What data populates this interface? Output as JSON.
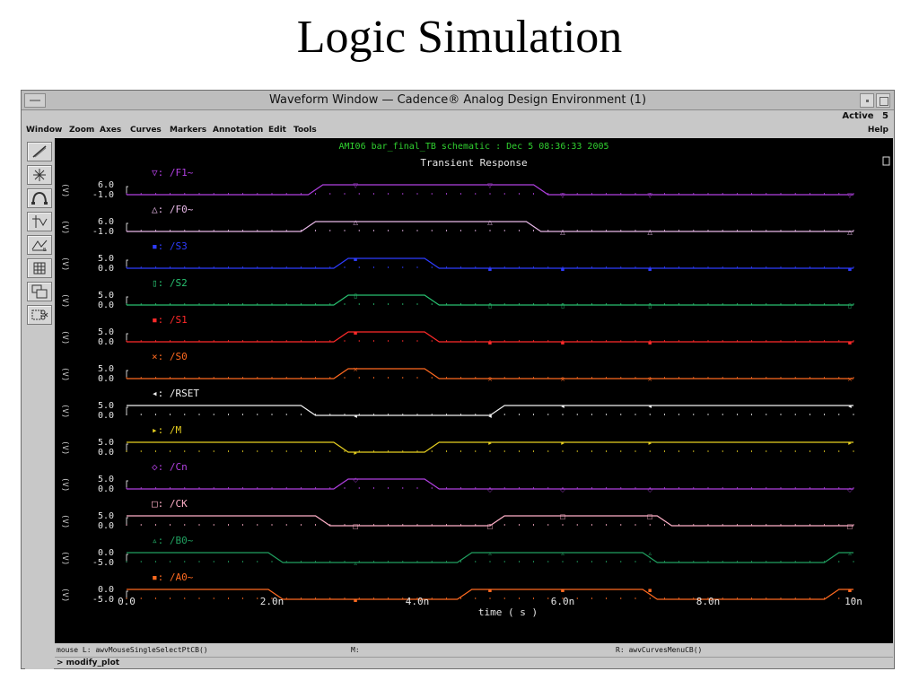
{
  "slide": {
    "title": "Logic Simulation"
  },
  "window": {
    "title": "Waveform Window — Cadence® Analog Design Environment (1)",
    "status_label": "Active",
    "status_value": "5"
  },
  "menubar": {
    "items": [
      "Window",
      "Zoom",
      "Axes",
      "Curves",
      "Markers",
      "Annotation",
      "Edit",
      "Tools"
    ],
    "help": "Help"
  },
  "toolbar": {
    "icons": [
      "draw-icon",
      "crosshair-icon",
      "arc-icon",
      "transient-icon",
      "ac-icon",
      "calculator-icon",
      "window-icon",
      "scissors-icon"
    ]
  },
  "plot": {
    "header": "AMI06 bar_final_TB schematic : Dec  5 08:36:33 2005",
    "subtitle": "Transient Response",
    "xlabel": "time ( s )",
    "xticks": [
      "0.0",
      "2.0n",
      "4.0n",
      "6.0n",
      "8.0n",
      "10n"
    ]
  },
  "statusbar": {
    "mouse_left": "mouse L: awvMouseSingleSelectPtCB()",
    "mouse_mid": "M:",
    "mouse_right": "R: awvCurvesMenuCB()",
    "command": "> modify_plot"
  },
  "chart_data": {
    "type": "line",
    "title": "Transient Response",
    "xlabel": "time ( s )",
    "xlim": [
      0,
      10
    ],
    "x_unit": "ns",
    "series": [
      {
        "name": "/F1~",
        "marker": "▽:",
        "color": "#b040e0",
        "ylim": [
          -1.0,
          6.0
        ],
        "ymax_label": "6.0",
        "ymin_label": "-1.0",
        "high_intervals": [
          [
            2.6,
            5.7
          ]
        ]
      },
      {
        "name": "/F0~",
        "marker": "△:",
        "color": "#e8b8e8",
        "ylim": [
          -1.0,
          6.0
        ],
        "ymax_label": "6.0",
        "ymin_label": "-1.0",
        "high_intervals": [
          [
            2.5,
            5.6
          ]
        ]
      },
      {
        "name": "/S3",
        "marker": "▪:",
        "color": "#2e3cff",
        "ylim": [
          0.0,
          5.0
        ],
        "ymax_label": "5.0",
        "ymin_label": "0.0",
        "high_intervals": [
          [
            2.95,
            4.2
          ]
        ]
      },
      {
        "name": "/S2",
        "marker": "▯:",
        "color": "#28c070",
        "ylim": [
          0.0,
          5.0
        ],
        "ymax_label": "5.0",
        "ymin_label": "0.0",
        "high_intervals": [
          [
            2.95,
            4.2
          ]
        ]
      },
      {
        "name": "/S1",
        "marker": "▪:",
        "color": "#ff2a2a",
        "ylim": [
          0.0,
          5.0
        ],
        "ymax_label": "5.0",
        "ymin_label": "0.0",
        "high_intervals": [
          [
            2.95,
            4.2
          ]
        ]
      },
      {
        "name": "/S0",
        "marker": "×:",
        "color": "#ff6a20",
        "ylim": [
          0.0,
          5.0
        ],
        "ymax_label": "5.0",
        "ymin_label": "0.0",
        "high_intervals": [
          [
            2.95,
            4.2
          ]
        ]
      },
      {
        "name": "/RSET",
        "marker": "◂:",
        "color": "#f0f0f0",
        "ylim": [
          0.0,
          5.0
        ],
        "ymax_label": "5.0",
        "ymin_label": "0.0",
        "high_intervals": [
          [
            0.0,
            2.5
          ],
          [
            5.1,
            10.0
          ]
        ]
      },
      {
        "name": "/M",
        "marker": "▸:",
        "color": "#e8d020",
        "ylim": [
          0.0,
          5.0
        ],
        "ymax_label": "5.0",
        "ymin_label": "0.0",
        "high_intervals": [
          [
            0.0,
            2.95
          ],
          [
            4.2,
            10.0
          ]
        ]
      },
      {
        "name": "/Cn",
        "marker": "◇:",
        "color": "#b040e0",
        "ylim": [
          0.0,
          5.0
        ],
        "ymax_label": "5.0",
        "ymin_label": "0.0",
        "high_intervals": [
          [
            2.95,
            4.2
          ]
        ]
      },
      {
        "name": "/CK",
        "marker": "□:",
        "color": "#ffb0c8",
        "ylim": [
          0.0,
          5.0
        ],
        "ymax_label": "5.0",
        "ymin_label": "0.0",
        "high_intervals": [
          [
            0.0,
            2.7
          ],
          [
            5.1,
            7.4
          ]
        ]
      },
      {
        "name": "/B0~",
        "marker": "▵:",
        "color": "#20a060",
        "ylim": [
          -5.0,
          0.0
        ],
        "ymax_label": "0.0",
        "ymin_label": "-5.0",
        "high_intervals": [
          [
            0.0,
            2.05
          ],
          [
            4.65,
            7.2
          ],
          [
            9.7,
            10.0
          ]
        ]
      },
      {
        "name": "/A0~",
        "marker": "▪:",
        "color": "#ff6a20",
        "ylim": [
          -5.0,
          0.0
        ],
        "ymax_label": "0.0",
        "ymin_label": "-5.0",
        "high_intervals": [
          [
            0.0,
            2.05
          ],
          [
            4.65,
            7.2
          ],
          [
            9.7,
            10.0
          ]
        ]
      }
    ]
  }
}
